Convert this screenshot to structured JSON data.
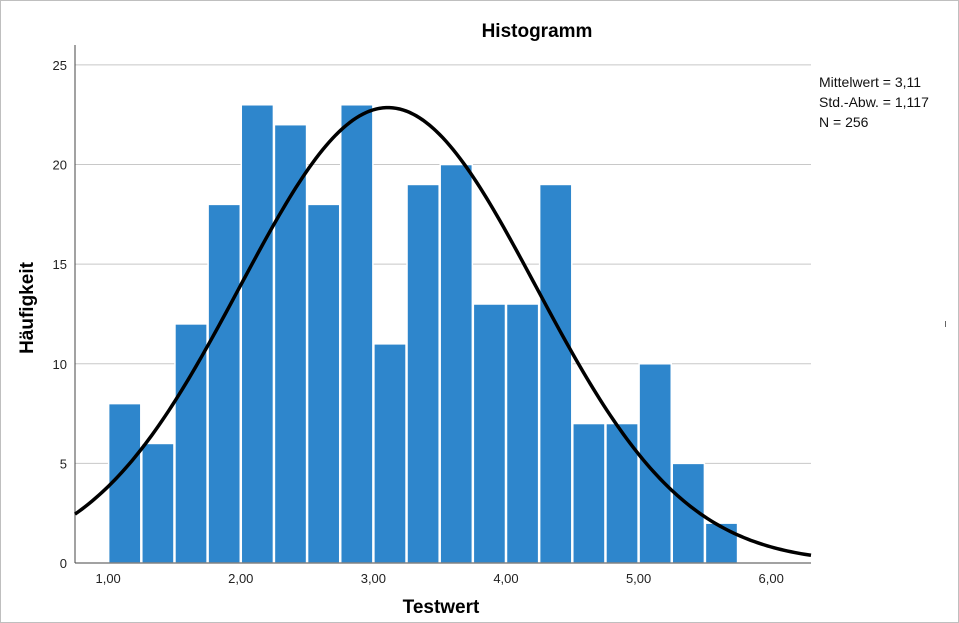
{
  "chart_data": {
    "type": "bar",
    "title": "Histogramm",
    "xlabel": "Testwert",
    "ylabel": "Häufigkeit",
    "bin_start": 1.0,
    "bin_width": 0.25,
    "values": [
      8,
      6,
      12,
      18,
      23,
      22,
      18,
      23,
      11,
      19,
      20,
      13,
      13,
      19,
      7,
      7,
      10,
      5,
      2
    ],
    "xlim": [
      0.75,
      6.3
    ],
    "ylim": [
      0,
      26
    ],
    "x_ticks": [
      {
        "value": 1,
        "label": "1,00"
      },
      {
        "value": 2,
        "label": "2,00"
      },
      {
        "value": 3,
        "label": "3,00"
      },
      {
        "value": 4,
        "label": "4,00"
      },
      {
        "value": 5,
        "label": "5,00"
      },
      {
        "value": 6,
        "label": "6,00"
      }
    ],
    "y_ticks": [
      {
        "value": 0,
        "label": "0"
      },
      {
        "value": 5,
        "label": "5"
      },
      {
        "value": 10,
        "label": "10"
      },
      {
        "value": 15,
        "label": "15"
      },
      {
        "value": 20,
        "label": "20"
      },
      {
        "value": 25,
        "label": "25"
      }
    ],
    "grid": "horizontal",
    "bar_color": "#2e86cc",
    "curve_color": "#000000",
    "normal_curve": {
      "mean": 3.11,
      "sd": 1.117,
      "n": 256
    },
    "stats": {
      "mean_label": "Mittelwert = 3,11",
      "sd_label": "Std.-Abw. = 1,117",
      "n_label": "N = 256"
    },
    "legend_placement": "right"
  }
}
